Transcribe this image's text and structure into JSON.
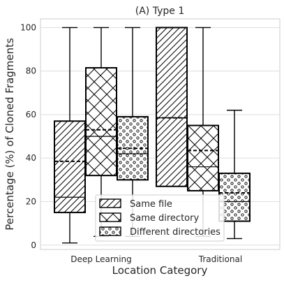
{
  "chart_data": {
    "type": "box",
    "title": "(A) Type 1",
    "xlabel": "Location Category",
    "ylabel": "Percentage (%) of Cloned Fragments",
    "ylim": [
      -2,
      104
    ],
    "yticks": [
      0,
      20,
      40,
      60,
      80,
      100
    ],
    "grid": true,
    "legend_position": "lower center",
    "categories": [
      "Deep Learning",
      "Traditional"
    ],
    "series": [
      {
        "name": "Same file",
        "hatch": "diagonal",
        "boxes": [
          {
            "category": "Deep Learning",
            "whisker_low": 1,
            "q1": 15,
            "median": 22,
            "mean": 38.5,
            "q3": 57,
            "whisker_high": 100
          },
          {
            "category": "Traditional",
            "whisker_low": 27,
            "q1": 27,
            "median": 58.5,
            "mean": 58.5,
            "q3": 100,
            "whisker_high": 100
          }
        ]
      },
      {
        "name": "Same directory",
        "hatch": "cross",
        "boxes": [
          {
            "category": "Deep Learning",
            "whisker_low": 4,
            "q1": 32,
            "median": 50,
            "mean": 53,
            "q3": 81.5,
            "whisker_high": 100
          },
          {
            "category": "Traditional",
            "whisker_low": 4,
            "q1": 25,
            "median": 36,
            "mean": 43.5,
            "q3": 55,
            "whisker_high": 100
          }
        ]
      },
      {
        "name": "Different directories",
        "hatch": "dots",
        "boxes": [
          {
            "category": "Deep Learning",
            "whisker_low": 4,
            "q1": 30,
            "median": 42,
            "mean": 44.5,
            "q3": 59,
            "whisker_high": 100
          },
          {
            "category": "Traditional",
            "whisker_low": 3,
            "q1": 11,
            "median": 20,
            "mean": 24,
            "q3": 33,
            "whisker_high": 62
          }
        ]
      }
    ]
  }
}
